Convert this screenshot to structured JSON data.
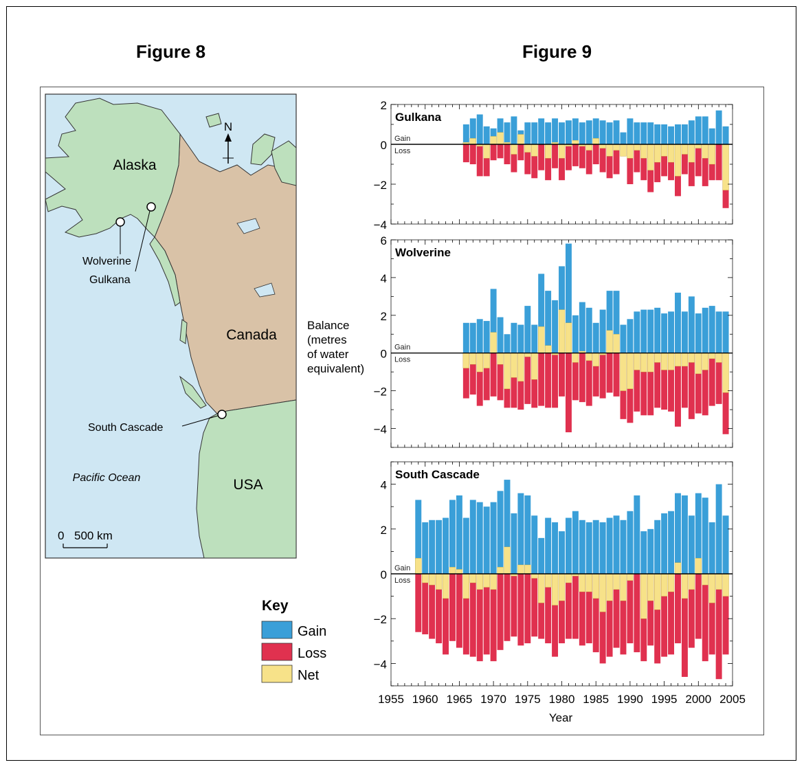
{
  "figures": {
    "fig8_title": "Figure 8",
    "fig9_title": "Figure 9"
  },
  "map": {
    "labels": {
      "alaska": "Alaska",
      "canada": "Canada",
      "usa": "USA",
      "pacific": "Pacific Ocean",
      "north": "N",
      "wolverine": "Wolverine",
      "gulkana": "Gulkana",
      "south_cascade": "South Cascade",
      "scale_zero": "0",
      "scale_value": "500 km"
    },
    "colors": {
      "ocean": "#cfe7f3",
      "land_green": "#bde0bd",
      "land_tan": "#d9c2a7"
    }
  },
  "key": {
    "title": "Key",
    "items": [
      {
        "label": "Gain",
        "color": "#3a9fd8"
      },
      {
        "label": "Loss",
        "color": "#e0314f"
      },
      {
        "label": "Net",
        "color": "#f7e289"
      }
    ]
  },
  "chart_labels": {
    "ylabel_lines": [
      "Balance",
      "(metres",
      "of water",
      "equivalent)"
    ],
    "xlabel": "Year",
    "gain": "Gain",
    "loss": "Loss"
  },
  "chart_data": [
    {
      "type": "bar",
      "title": "Gulkana",
      "ylim": [
        -4,
        2
      ],
      "yticks": [
        2,
        0,
        -2,
        -4
      ],
      "x": [
        1966,
        1967,
        1968,
        1969,
        1970,
        1971,
        1972,
        1973,
        1974,
        1975,
        1976,
        1977,
        1978,
        1979,
        1980,
        1981,
        1982,
        1983,
        1984,
        1985,
        1986,
        1987,
        1988,
        1989,
        1990,
        1991,
        1992,
        1993,
        1994,
        1995,
        1996,
        1997,
        1998,
        1999,
        2000,
        2001,
        2002,
        2003,
        2004
      ],
      "series": [
        {
          "name": "Gain",
          "values": [
            1.0,
            1.3,
            1.5,
            0.9,
            0.8,
            1.3,
            1.1,
            1.4,
            0.7,
            1.1,
            1.1,
            1.3,
            1.1,
            1.3,
            1.1,
            1.2,
            1.3,
            1.1,
            1.2,
            1.3,
            1.2,
            1.1,
            1.2,
            0.6,
            1.3,
            1.1,
            1.1,
            1.1,
            1.0,
            1.0,
            0.9,
            1.0,
            1.0,
            1.2,
            1.4,
            1.4,
            0.8,
            1.7,
            0.9
          ]
        },
        {
          "name": "Loss",
          "values": [
            -0.9,
            -1.0,
            -1.6,
            -1.6,
            -0.8,
            -0.7,
            -1.0,
            -1.4,
            -0.8,
            -1.5,
            -1.7,
            -1.3,
            -1.8,
            -1.2,
            -1.8,
            -1.3,
            -1.1,
            -1.2,
            -1.5,
            -1.0,
            -1.4,
            -1.7,
            -1.5,
            -0.6,
            -2.0,
            -1.4,
            -1.8,
            -2.4,
            -1.9,
            -1.6,
            -1.8,
            -2.6,
            -1.5,
            -2.1,
            -1.6,
            -2.1,
            -1.8,
            -1.8,
            -3.2
          ]
        },
        {
          "name": "Net",
          "values": [
            0.1,
            0.3,
            -0.1,
            -0.7,
            0.4,
            0.6,
            0.1,
            -0.5,
            0.5,
            -0.4,
            -0.6,
            0.0,
            -0.7,
            0.1,
            -0.7,
            -0.1,
            0.2,
            -0.1,
            -0.3,
            0.3,
            -0.2,
            -0.6,
            -0.3,
            -0.6,
            -0.7,
            -0.3,
            -0.7,
            -1.3,
            -0.9,
            -0.6,
            -0.9,
            -1.6,
            -0.5,
            -0.9,
            -0.2,
            -0.7,
            -1.0,
            0.0,
            -2.3
          ]
        }
      ]
    },
    {
      "type": "bar",
      "title": "Wolverine",
      "ylim": [
        -5,
        6
      ],
      "yticks": [
        6,
        4,
        2,
        0,
        -2,
        -4
      ],
      "x": [
        1966,
        1967,
        1968,
        1969,
        1970,
        1971,
        1972,
        1973,
        1974,
        1975,
        1976,
        1977,
        1978,
        1979,
        1980,
        1981,
        1982,
        1983,
        1984,
        1985,
        1986,
        1987,
        1988,
        1989,
        1990,
        1991,
        1992,
        1993,
        1994,
        1995,
        1996,
        1997,
        1998,
        1999,
        2000,
        2001,
        2002,
        2003,
        2004
      ],
      "series": [
        {
          "name": "Gain",
          "values": [
            1.6,
            1.6,
            1.8,
            1.7,
            3.4,
            1.9,
            1.0,
            1.6,
            1.5,
            2.5,
            1.5,
            4.2,
            3.3,
            2.8,
            4.6,
            5.8,
            2.0,
            2.7,
            2.4,
            1.6,
            2.3,
            3.3,
            3.3,
            1.5,
            1.8,
            2.2,
            2.3,
            2.3,
            2.4,
            2.1,
            2.2,
            3.2,
            2.2,
            3.0,
            2.1,
            2.4,
            2.5,
            2.2,
            2.2
          ]
        },
        {
          "name": "Loss",
          "values": [
            -2.4,
            -2.2,
            -2.8,
            -2.5,
            -2.3,
            -2.5,
            -2.9,
            -2.9,
            -3.0,
            -2.7,
            -2.9,
            -2.8,
            -2.9,
            -2.9,
            -2.3,
            -4.2,
            -2.5,
            -2.6,
            -2.8,
            -2.3,
            -2.4,
            -2.1,
            -2.3,
            -3.5,
            -3.7,
            -3.1,
            -3.3,
            -3.3,
            -2.9,
            -3.0,
            -3.1,
            -3.9,
            -2.9,
            -3.5,
            -3.2,
            -3.3,
            -2.8,
            -2.7,
            -4.3
          ]
        },
        {
          "name": "Net",
          "values": [
            -0.8,
            -0.6,
            -1.0,
            -0.8,
            1.1,
            -0.6,
            -1.9,
            -1.3,
            -1.5,
            -0.2,
            -1.4,
            1.4,
            0.4,
            -0.1,
            2.3,
            1.6,
            -0.5,
            0.1,
            -0.4,
            -0.7,
            -0.1,
            1.2,
            1.0,
            -2.0,
            -1.9,
            -0.9,
            -1.0,
            -1.0,
            -0.5,
            -0.9,
            -0.9,
            -0.7,
            -0.7,
            -0.5,
            -1.1,
            -0.9,
            -0.3,
            -0.5,
            -2.1
          ]
        }
      ]
    },
    {
      "type": "bar",
      "title": "South Cascade",
      "ylim": [
        -5,
        5
      ],
      "yticks": [
        4,
        2,
        0,
        -2,
        -4
      ],
      "x": [
        1959,
        1960,
        1961,
        1962,
        1963,
        1964,
        1965,
        1966,
        1967,
        1968,
        1969,
        1970,
        1971,
        1972,
        1973,
        1974,
        1975,
        1976,
        1977,
        1978,
        1979,
        1980,
        1981,
        1982,
        1983,
        1984,
        1985,
        1986,
        1987,
        1988,
        1989,
        1990,
        1991,
        1992,
        1993,
        1994,
        1995,
        1996,
        1997,
        1998,
        1999,
        2000,
        2001,
        2002,
        2003,
        2004
      ],
      "series": [
        {
          "name": "Gain",
          "values": [
            3.3,
            2.3,
            2.4,
            2.4,
            2.5,
            3.3,
            3.5,
            2.5,
            3.3,
            3.2,
            3.0,
            3.2,
            3.7,
            4.2,
            2.7,
            3.6,
            3.5,
            2.6,
            1.6,
            2.5,
            2.3,
            1.9,
            2.5,
            2.8,
            2.4,
            2.3,
            2.4,
            2.3,
            2.5,
            2.6,
            2.4,
            2.8,
            3.5,
            1.9,
            2.0,
            2.4,
            2.7,
            2.8,
            3.6,
            3.5,
            2.6,
            3.6,
            3.4,
            2.3,
            4.0,
            2.6
          ]
        },
        {
          "name": "Loss",
          "values": [
            -2.6,
            -2.7,
            -2.9,
            -3.1,
            -3.6,
            -3.0,
            -3.3,
            -3.6,
            -3.7,
            -3.9,
            -3.6,
            -3.9,
            -3.4,
            -3.0,
            -2.8,
            -3.2,
            -3.1,
            -2.8,
            -2.9,
            -3.1,
            -3.7,
            -3.1,
            -2.9,
            -2.9,
            -3.2,
            -3.1,
            -3.5,
            -4.0,
            -3.7,
            -3.3,
            -3.6,
            -3.1,
            -3.5,
            -3.9,
            -3.2,
            -4.0,
            -3.7,
            -3.6,
            -3.1,
            -4.6,
            -3.3,
            -2.9,
            -3.9,
            -3.6,
            -4.7,
            -3.6
          ]
        },
        {
          "name": "Net",
          "values": [
            0.7,
            -0.4,
            -0.5,
            -0.7,
            -1.1,
            0.3,
            0.2,
            -1.1,
            -0.4,
            -0.7,
            -0.6,
            -0.7,
            0.3,
            1.2,
            -0.1,
            0.4,
            0.4,
            -0.2,
            -1.3,
            -0.6,
            -1.4,
            -1.2,
            -0.4,
            -0.1,
            -0.8,
            -0.8,
            -1.1,
            -1.7,
            -1.2,
            -0.7,
            -1.2,
            -0.3,
            0.0,
            -2.0,
            -1.2,
            -1.6,
            -1.0,
            -0.8,
            0.5,
            -1.1,
            -0.7,
            0.7,
            -0.5,
            -1.3,
            -0.7,
            -1.0
          ]
        }
      ]
    }
  ],
  "xaxis": {
    "ticks": [
      1955,
      1960,
      1965,
      1970,
      1975,
      1980,
      1985,
      1990,
      1995,
      2000,
      2005
    ],
    "range": [
      1955,
      2005
    ]
  }
}
